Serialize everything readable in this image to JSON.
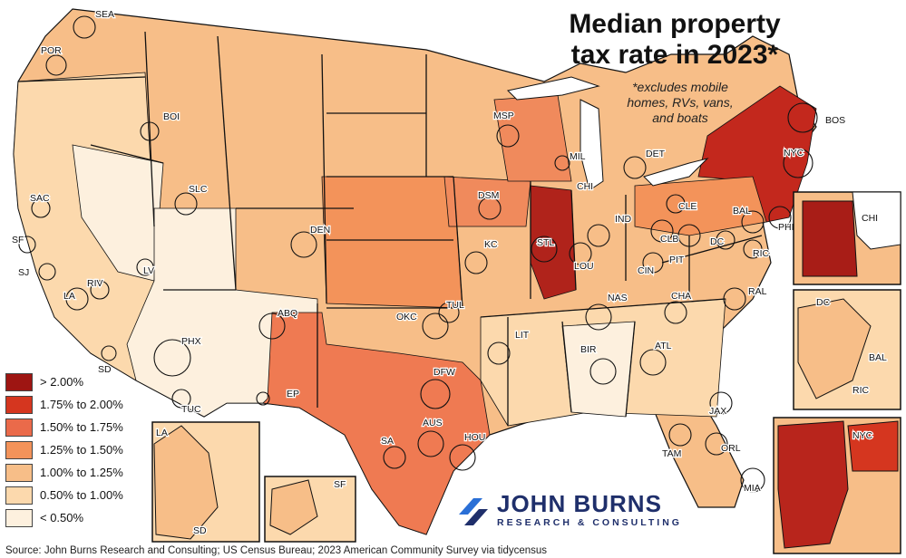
{
  "title": "Median property tax rate in 2023*",
  "title_lines": [
    "Median property",
    "tax rate in 2023*"
  ],
  "footnote_lines": [
    "*excludes mobile",
    "homes, RVs, vans,",
    "and boats"
  ],
  "legend": [
    {
      "label": "> 2.00%",
      "color": "#9e1512"
    },
    {
      "label": "1.75% to 2.00%",
      "color": "#d5361f"
    },
    {
      "label": "1.50% to 1.75%",
      "color": "#ea6a4a"
    },
    {
      "label": "1.25% to 1.50%",
      "color": "#f3935a"
    },
    {
      "label": "1.00% to 1.25%",
      "color": "#f7be88"
    },
    {
      "label": "0.50% to 1.00%",
      "color": "#fcd9ad"
    },
    {
      "label": "< 0.50%",
      "color": "#fdf0de"
    }
  ],
  "cities": [
    "SEA",
    "POR",
    "BOI",
    "SAC",
    "SF",
    "SJ",
    "LA",
    "RIV",
    "SD",
    "LV",
    "PHX",
    "TUC",
    "SLC",
    "DEN",
    "ABQ",
    "EP",
    "MSP",
    "DSM",
    "KC",
    "OKC",
    "DFW",
    "AUS",
    "SA",
    "HOU",
    "TUL",
    "LIT",
    "STL",
    "MIL",
    "CHI",
    "DET",
    "IND",
    "CLE",
    "CLB",
    "PIT",
    "CIN",
    "LOU",
    "NAS",
    "CHA",
    "BIR",
    "ATL",
    "JAX",
    "TAM",
    "ORL",
    "MIA",
    "RAL",
    "RIC",
    "DC",
    "BAL",
    "PHI",
    "NYC",
    "BOS"
  ],
  "insets": {
    "chi": {
      "label": "CHI"
    },
    "dc": {
      "labels": [
        "DC",
        "BAL",
        "RIC"
      ]
    },
    "nyc": {
      "label": "NYC"
    },
    "la": {
      "labels": [
        "LA",
        "SD"
      ]
    },
    "sf": {
      "label": "SF"
    }
  },
  "logo": {
    "main": "JOHN BURNS",
    "sub": "RESEARCH & CONSULTING"
  },
  "source": "Source: John Burns Research and Consulting; US Census Bureau; 2023 American Community Survey via tidycensus"
}
